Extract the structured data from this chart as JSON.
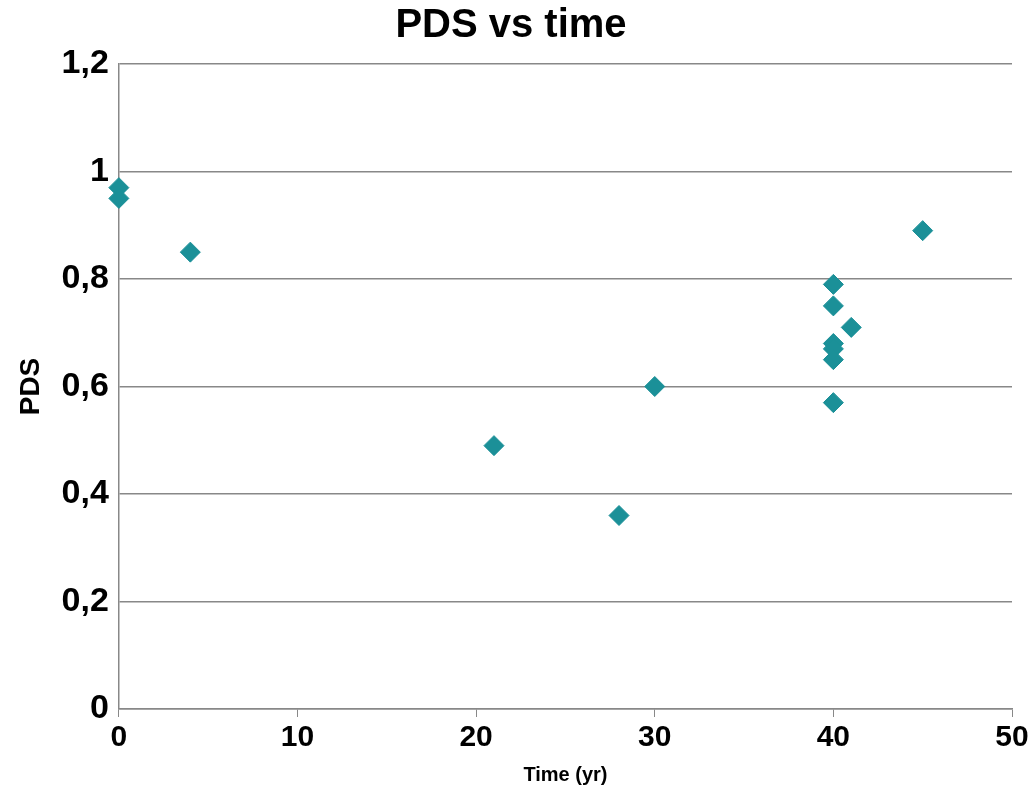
{
  "chart_data": {
    "type": "scatter",
    "title": "PDS vs time",
    "xlabel": "Time (yr)",
    "ylabel": "PDS",
    "series": [
      {
        "color": "#1b9098",
        "x": [
          0,
          0,
          4,
          21,
          28,
          30,
          40,
          40,
          40,
          40,
          40,
          40,
          41,
          45
        ],
        "values": [
          0.97,
          0.95,
          0.85,
          0.49,
          0.36,
          0.6,
          0.79,
          0.75,
          0.68,
          0.67,
          0.65,
          0.57,
          0.71,
          0.89
        ]
      }
    ],
    "xlim": [
      0,
      50
    ],
    "xticks": [
      0,
      10,
      20,
      30,
      40,
      50
    ],
    "ylim": [
      0,
      1.2
    ],
    "yticks": [
      0,
      {
        "value": 0.2,
        "label": "0,2"
      },
      {
        "value": 0.4,
        "label": "0,4"
      },
      {
        "value": 0.6,
        "label": "0,6"
      },
      {
        "value": 0.8,
        "label": "0,8"
      },
      1,
      {
        "value": 1.2,
        "label": "1,2"
      }
    ],
    "grid": "y",
    "marker": "diamond",
    "legend": false
  }
}
